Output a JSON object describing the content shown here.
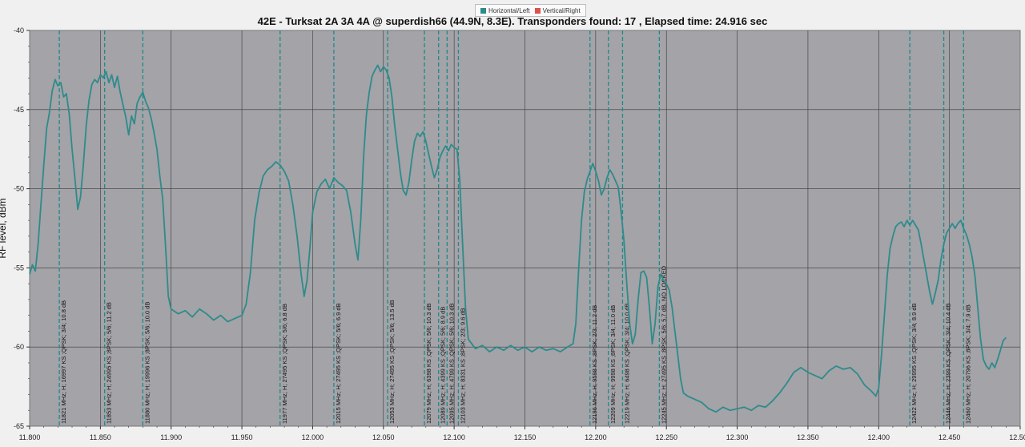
{
  "legend": {
    "items": [
      {
        "label": "Horizontal/Left",
        "color": "#2e8b8b"
      },
      {
        "label": "Vertical/Right",
        "color": "#d9534f"
      }
    ]
  },
  "chart_data": {
    "type": "line",
    "title": "42E - Turksat 2A 3A 4A @ superdish66 (44.9N, 8.3E). Transponders found: 17 , Elapsed time: 24.916 sec",
    "xlabel": "",
    "ylabel": "RF level, dBm",
    "xlim": [
      11.8,
      12.5
    ],
    "ylim": [
      -65,
      -40
    ],
    "x_ticks": [
      "11.800",
      "11.850",
      "11.900",
      "11.950",
      "12.000",
      "12.050",
      "12.100",
      "12.150",
      "12.200",
      "12.250",
      "12.300",
      "12.350",
      "12.400",
      "12.450",
      "12.500"
    ],
    "y_ticks": [
      "-40",
      "-45",
      "-50",
      "-55",
      "-60",
      "-65"
    ],
    "grid": true,
    "plot_background": "#a3a3a8",
    "series": [
      {
        "name": "Horizontal/Left",
        "color": "#2e8b8b",
        "points": [
          [
            11.8,
            -55.4
          ],
          [
            11.802,
            -54.8
          ],
          [
            11.804,
            -55.2
          ],
          [
            11.806,
            -53.5
          ],
          [
            11.808,
            -51
          ],
          [
            11.81,
            -48.5
          ],
          [
            11.812,
            -46.2
          ],
          [
            11.814,
            -45.2
          ],
          [
            11.816,
            -43.8
          ],
          [
            11.818,
            -43.1
          ],
          [
            11.82,
            -43.5
          ],
          [
            11.822,
            -43.3
          ],
          [
            11.824,
            -44.2
          ],
          [
            11.826,
            -44.0
          ],
          [
            11.828,
            -45.3
          ],
          [
            11.83,
            -47.5
          ],
          [
            11.832,
            -49.3
          ],
          [
            11.834,
            -51.3
          ],
          [
            11.836,
            -50.5
          ],
          [
            11.838,
            -48.4
          ],
          [
            11.84,
            -46.0
          ],
          [
            11.842,
            -44.4
          ],
          [
            11.844,
            -43.4
          ],
          [
            11.846,
            -43.1
          ],
          [
            11.848,
            -43.3
          ],
          [
            11.85,
            -42.8
          ],
          [
            11.852,
            -43.0
          ],
          [
            11.854,
            -42.6
          ],
          [
            11.856,
            -43.3
          ],
          [
            11.858,
            -42.8
          ],
          [
            11.86,
            -43.6
          ],
          [
            11.862,
            -42.9
          ],
          [
            11.864,
            -43.9
          ],
          [
            11.866,
            -44.7
          ],
          [
            11.868,
            -45.5
          ],
          [
            11.87,
            -46.6
          ],
          [
            11.872,
            -45.4
          ],
          [
            11.874,
            -45.9
          ],
          [
            11.876,
            -44.6
          ],
          [
            11.878,
            -44.2
          ],
          [
            11.88,
            -43.9
          ],
          [
            11.882,
            -44.5
          ],
          [
            11.884,
            -44.9
          ],
          [
            11.886,
            -45.6
          ],
          [
            11.888,
            -46.5
          ],
          [
            11.89,
            -47.5
          ],
          [
            11.892,
            -49.2
          ],
          [
            11.894,
            -50.6
          ],
          [
            11.896,
            -53.5
          ],
          [
            11.898,
            -56.8
          ],
          [
            11.9,
            -57.6
          ],
          [
            11.905,
            -57.9
          ],
          [
            11.91,
            -57.7
          ],
          [
            11.915,
            -58.1
          ],
          [
            11.92,
            -57.6
          ],
          [
            11.925,
            -57.9
          ],
          [
            11.93,
            -58.3
          ],
          [
            11.935,
            -58.0
          ],
          [
            11.94,
            -58.4
          ],
          [
            11.945,
            -58.2
          ],
          [
            11.95,
            -58.0
          ],
          [
            11.953,
            -57.3
          ],
          [
            11.956,
            -55.3
          ],
          [
            11.959,
            -52.0
          ],
          [
            11.962,
            -50.3
          ],
          [
            11.965,
            -49.2
          ],
          [
            11.968,
            -48.8
          ],
          [
            11.971,
            -48.6
          ],
          [
            11.974,
            -48.3
          ],
          [
            11.977,
            -48.5
          ],
          [
            11.98,
            -48.9
          ],
          [
            11.983,
            -49.5
          ],
          [
            11.986,
            -51.0
          ],
          [
            11.989,
            -53.0
          ],
          [
            11.992,
            -55.5
          ],
          [
            11.994,
            -56.8
          ],
          [
            11.996,
            -55.8
          ],
          [
            11.998,
            -53.8
          ],
          [
            12.0,
            -51.5
          ],
          [
            12.003,
            -50.2
          ],
          [
            12.006,
            -49.7
          ],
          [
            12.009,
            -49.4
          ],
          [
            12.012,
            -50.0
          ],
          [
            12.015,
            -49.3
          ],
          [
            12.018,
            -49.6
          ],
          [
            12.021,
            -49.8
          ],
          [
            12.024,
            -50.1
          ],
          [
            12.027,
            -51.5
          ],
          [
            12.03,
            -53.5
          ],
          [
            12.032,
            -54.5
          ],
          [
            12.034,
            -52.0
          ],
          [
            12.036,
            -48.0
          ],
          [
            12.038,
            -45.3
          ],
          [
            12.04,
            -43.9
          ],
          [
            12.042,
            -42.9
          ],
          [
            12.044,
            -42.5
          ],
          [
            12.046,
            -42.2
          ],
          [
            12.048,
            -42.6
          ],
          [
            12.05,
            -42.3
          ],
          [
            12.052,
            -42.5
          ],
          [
            12.054,
            -43.0
          ],
          [
            12.056,
            -44.2
          ],
          [
            12.058,
            -46.0
          ],
          [
            12.06,
            -47.5
          ],
          [
            12.062,
            -49.0
          ],
          [
            12.064,
            -50.1
          ],
          [
            12.066,
            -50.4
          ],
          [
            12.068,
            -49.6
          ],
          [
            12.07,
            -48.2
          ],
          [
            12.072,
            -47.0
          ],
          [
            12.074,
            -46.5
          ],
          [
            12.076,
            -46.7
          ],
          [
            12.078,
            -46.4
          ],
          [
            12.08,
            -47.0
          ],
          [
            12.082,
            -47.8
          ],
          [
            12.084,
            -48.6
          ],
          [
            12.086,
            -49.3
          ],
          [
            12.088,
            -48.8
          ],
          [
            12.09,
            -48.0
          ],
          [
            12.092,
            -47.6
          ],
          [
            12.094,
            -47.3
          ],
          [
            12.096,
            -47.6
          ],
          [
            12.098,
            -47.2
          ],
          [
            12.1,
            -47.4
          ],
          [
            12.102,
            -47.5
          ],
          [
            12.104,
            -49.5
          ],
          [
            12.106,
            -53.5
          ],
          [
            12.108,
            -57.5
          ],
          [
            12.11,
            -59.5
          ],
          [
            12.115,
            -60.1
          ],
          [
            12.12,
            -59.9
          ],
          [
            12.125,
            -60.3
          ],
          [
            12.13,
            -60.0
          ],
          [
            12.135,
            -60.2
          ],
          [
            12.14,
            -59.9
          ],
          [
            12.145,
            -60.2
          ],
          [
            12.15,
            -60.0
          ],
          [
            12.155,
            -60.3
          ],
          [
            12.16,
            -60.0
          ],
          [
            12.165,
            -60.2
          ],
          [
            12.17,
            -60.1
          ],
          [
            12.175,
            -60.3
          ],
          [
            12.18,
            -60.0
          ],
          [
            12.184,
            -59.8
          ],
          [
            12.186,
            -58.5
          ],
          [
            12.188,
            -55.0
          ],
          [
            12.19,
            -52.0
          ],
          [
            12.192,
            -50.2
          ],
          [
            12.194,
            -49.4
          ],
          [
            12.196,
            -48.9
          ],
          [
            12.198,
            -48.4
          ],
          [
            12.2,
            -48.9
          ],
          [
            12.202,
            -49.5
          ],
          [
            12.204,
            -50.4
          ],
          [
            12.206,
            -50.0
          ],
          [
            12.208,
            -49.3
          ],
          [
            12.21,
            -48.8
          ],
          [
            12.212,
            -49.1
          ],
          [
            12.214,
            -49.5
          ],
          [
            12.216,
            -49.9
          ],
          [
            12.218,
            -51.5
          ],
          [
            12.22,
            -53.3
          ],
          [
            12.222,
            -56.0
          ],
          [
            12.224,
            -58.5
          ],
          [
            12.226,
            -59.8
          ],
          [
            12.228,
            -59.2
          ],
          [
            12.23,
            -57.0
          ],
          [
            12.232,
            -55.3
          ],
          [
            12.234,
            -55.2
          ],
          [
            12.236,
            -55.6
          ],
          [
            12.238,
            -57.5
          ],
          [
            12.24,
            -59.8
          ],
          [
            12.242,
            -58.5
          ],
          [
            12.244,
            -56.2
          ],
          [
            12.246,
            -55.4
          ],
          [
            12.248,
            -55.8
          ],
          [
            12.25,
            -56.0
          ],
          [
            12.252,
            -56.4
          ],
          [
            12.254,
            -57.5
          ],
          [
            12.256,
            -59.0
          ],
          [
            12.258,
            -60.5
          ],
          [
            12.26,
            -62.0
          ],
          [
            12.262,
            -62.9
          ],
          [
            12.265,
            -63.1
          ],
          [
            12.27,
            -63.3
          ],
          [
            12.275,
            -63.5
          ],
          [
            12.28,
            -63.9
          ],
          [
            12.285,
            -64.1
          ],
          [
            12.29,
            -63.8
          ],
          [
            12.295,
            -64.0
          ],
          [
            12.3,
            -63.9
          ],
          [
            12.305,
            -63.8
          ],
          [
            12.31,
            -64.0
          ],
          [
            12.315,
            -63.7
          ],
          [
            12.32,
            -63.8
          ],
          [
            12.325,
            -63.4
          ],
          [
            12.33,
            -62.9
          ],
          [
            12.335,
            -62.3
          ],
          [
            12.34,
            -61.6
          ],
          [
            12.345,
            -61.3
          ],
          [
            12.35,
            -61.6
          ],
          [
            12.355,
            -61.8
          ],
          [
            12.36,
            -62.0
          ],
          [
            12.365,
            -61.5
          ],
          [
            12.37,
            -61.2
          ],
          [
            12.375,
            -61.4
          ],
          [
            12.38,
            -61.3
          ],
          [
            12.385,
            -61.7
          ],
          [
            12.39,
            -62.4
          ],
          [
            12.395,
            -62.8
          ],
          [
            12.398,
            -63.1
          ],
          [
            12.4,
            -62.6
          ],
          [
            12.402,
            -60.5
          ],
          [
            12.404,
            -58.0
          ],
          [
            12.406,
            -55.5
          ],
          [
            12.408,
            -53.8
          ],
          [
            12.41,
            -53.0
          ],
          [
            12.412,
            -52.4
          ],
          [
            12.414,
            -52.2
          ],
          [
            12.416,
            -52.1
          ],
          [
            12.418,
            -52.4
          ],
          [
            12.42,
            -52.0
          ],
          [
            12.422,
            -52.3
          ],
          [
            12.424,
            -52.0
          ],
          [
            12.426,
            -52.3
          ],
          [
            12.428,
            -52.6
          ],
          [
            12.43,
            -53.5
          ],
          [
            12.432,
            -54.5
          ],
          [
            12.434,
            -55.5
          ],
          [
            12.436,
            -56.5
          ],
          [
            12.438,
            -57.3
          ],
          [
            12.44,
            -56.6
          ],
          [
            12.442,
            -55.8
          ],
          [
            12.444,
            -54.5
          ],
          [
            12.446,
            -53.5
          ],
          [
            12.448,
            -52.8
          ],
          [
            12.45,
            -52.5
          ],
          [
            12.452,
            -52.2
          ],
          [
            12.454,
            -52.5
          ],
          [
            12.456,
            -52.2
          ],
          [
            12.458,
            -52.0
          ],
          [
            12.46,
            -52.5
          ],
          [
            12.462,
            -52.9
          ],
          [
            12.464,
            -53.5
          ],
          [
            12.466,
            -54.3
          ],
          [
            12.468,
            -55.5
          ],
          [
            12.47,
            -57.5
          ],
          [
            12.472,
            -59.5
          ],
          [
            12.474,
            -60.8
          ],
          [
            12.476,
            -61.2
          ],
          [
            12.478,
            -61.4
          ],
          [
            12.48,
            -61.0
          ],
          [
            12.482,
            -61.3
          ],
          [
            12.484,
            -60.8
          ],
          [
            12.486,
            -60.2
          ],
          [
            12.488,
            -59.6
          ],
          [
            12.49,
            -59.4
          ]
        ]
      }
    ],
    "transponders": [
      {
        "freq": 11.821,
        "label": "11821 MHz; H; 16997 KS ;QPSK; 3/4; 10.8 dB"
      },
      {
        "freq": 11.853,
        "label": "11853 MHz; H; 24995 KS ;8PSK; 5/6; 11.2 dB"
      },
      {
        "freq": 11.88,
        "label": "11880 MHz; H; 19996 KS ;8PSK; 5/6; 10.0 dB"
      },
      {
        "freq": 11.977,
        "label": "11977 MHz; H; 27495 KS ;QPSK; 5/6; 6.8 dB"
      },
      {
        "freq": 12.015,
        "label": "12015 MHz; H; 27495 KS ;QPSK; 5/6; 6.9 dB"
      },
      {
        "freq": 12.053,
        "label": "12053 MHz; H; 27495 KS ;QPSK; 5/6; 13.5 dB"
      },
      {
        "freq": 12.079,
        "label": "12079 MHz; H; 6398 KS ;QPSK; 5/6; 10.3 dB"
      },
      {
        "freq": 12.089,
        "label": "12089 MHz; H; 4399 KS ;QPSK; 5/6; 8.9 dB"
      },
      {
        "freq": 12.095,
        "label": "12095 MHz; H; 4799 KS ;QPSK; 5/6; 10.3 dB"
      },
      {
        "freq": 12.103,
        "label": "12103 MHz; H; 8331 KS ;8PSK; 2/3; 9.6 dB"
      },
      {
        "freq": 12.196,
        "label": "12196 MHz; H; 9598 KS ;8PSK; 2/3; 11.2 dB"
      },
      {
        "freq": 12.209,
        "label": "12209 MHz; H; 9998 KS ;8PSK; 3/4; 11.0 dB"
      },
      {
        "freq": 12.219,
        "label": "12219 MHz; H; 6498 KS ;QPSK; 3/4; 10.0 dB"
      },
      {
        "freq": 12.245,
        "label": "12245 MHz; H; 27495 KS ;8PSK; 5/6; 5.7 dB, NO LOCKED"
      },
      {
        "freq": 12.422,
        "label": "12422 MHz; H; 29995 KS ;QPSK; 3/4; 8.9 dB"
      },
      {
        "freq": 12.446,
        "label": "12446 MHz; H; 2399 KS ;QPSK; 3/4; 10.4 dB"
      },
      {
        "freq": 12.46,
        "label": "12460 MHz; H; 20796 KS ;8PSK; 3/4; 7.9 dB"
      }
    ]
  }
}
